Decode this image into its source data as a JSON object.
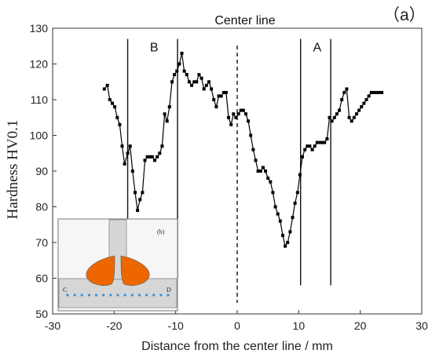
{
  "chart_data": {
    "type": "line",
    "panel_label": "（a）",
    "xlabel": "Distance from the center line / mm",
    "ylabel": "Hardness HV0.1",
    "xlim": [
      -30,
      30
    ],
    "ylim": [
      50,
      130
    ],
    "xticks": [
      -30,
      -20,
      -10,
      0,
      10,
      20,
      30
    ],
    "yticks": [
      50,
      60,
      70,
      80,
      90,
      100,
      110,
      120,
      130
    ],
    "grid": false,
    "series": [
      {
        "color": "#000000",
        "marker": "square",
        "x": [
          -21.6,
          -21.1,
          -20.7,
          -20.3,
          -19.9,
          -19.5,
          -19.1,
          -18.7,
          -18.3,
          -17.8,
          -17.4,
          -17.0,
          -16.6,
          -16.2,
          -15.8,
          -15.4,
          -15.0,
          -14.6,
          -14.2,
          -13.8,
          -13.4,
          -13.0,
          -12.6,
          -12.2,
          -11.8,
          -11.4,
          -11.0,
          -10.6,
          -10.2,
          -9.8,
          -9.4,
          -9.0,
          -8.6,
          -8.2,
          -7.8,
          -7.4,
          -7.0,
          -6.6,
          -6.2,
          -5.8,
          -5.4,
          -5.0,
          -4.6,
          -4.2,
          -3.8,
          -3.4,
          -3.0,
          -2.6,
          -2.2,
          -1.8,
          -1.4,
          -1.0,
          -0.6,
          -0.2,
          0.2,
          0.6,
          1.0,
          1.4,
          1.8,
          2.2,
          2.6,
          3.0,
          3.4,
          3.8,
          4.2,
          4.6,
          5.0,
          5.4,
          5.8,
          6.2,
          6.6,
          7.0,
          7.4,
          7.8,
          8.2,
          8.6,
          9.0,
          9.4,
          9.8,
          10.2,
          10.6,
          11.0,
          11.4,
          11.8,
          12.2,
          12.6,
          13.0,
          13.4,
          13.8,
          14.2,
          14.6,
          15.0,
          15.4,
          15.8,
          16.2,
          16.6,
          17.0,
          17.4,
          17.8,
          18.2,
          18.6,
          19.0,
          19.4,
          19.8,
          20.2,
          20.6,
          21.0,
          21.4,
          21.8,
          22.2,
          22.6,
          23.0,
          23.5
        ],
        "y": [
          113,
          114,
          110,
          109,
          108,
          105,
          103,
          97,
          92,
          95,
          97,
          90,
          84,
          79,
          82,
          84,
          93,
          94,
          94,
          94,
          93,
          94,
          95,
          97,
          106,
          104,
          108,
          115,
          117,
          118,
          120,
          123,
          118,
          117,
          115,
          114,
          115,
          115,
          117,
          116,
          113,
          114,
          115,
          113,
          110,
          108,
          111,
          111,
          112,
          112,
          105,
          103,
          106,
          105,
          106,
          107,
          107,
          106,
          104,
          100,
          96,
          93,
          90,
          90,
          91,
          90,
          88,
          87,
          84,
          80,
          78,
          76,
          72,
          69,
          70,
          73,
          77,
          81,
          84,
          89,
          94,
          96,
          97,
          97,
          96,
          97,
          98,
          98,
          98,
          98,
          99,
          105,
          104,
          105,
          106,
          107,
          110,
          112,
          113,
          105,
          104,
          105,
          106,
          107,
          108,
          109,
          110,
          111,
          112,
          112,
          112,
          112,
          112
        ]
      }
    ],
    "vlines": [
      {
        "x": -17.8,
        "y_from": 60,
        "y_to": 127
      },
      {
        "x": -9.7,
        "y_from": 60,
        "y_to": 127
      },
      {
        "x": 10.3,
        "y_from": 58,
        "y_to": 127
      },
      {
        "x": 15.2,
        "y_from": 58,
        "y_to": 127
      }
    ],
    "center_line": {
      "x": 0,
      "label": "Center line"
    },
    "region_labels": [
      {
        "text": "B",
        "x": -13.5,
        "y": 123.5
      },
      {
        "text": "A",
        "x": 13.0,
        "y": 123.5
      }
    ],
    "inset": {
      "label": "(b)",
      "left_label": "C",
      "right_label": "D",
      "weld_color": "#ee6600",
      "dot_color": "#3a8fd8",
      "dot_count": 15
    }
  }
}
